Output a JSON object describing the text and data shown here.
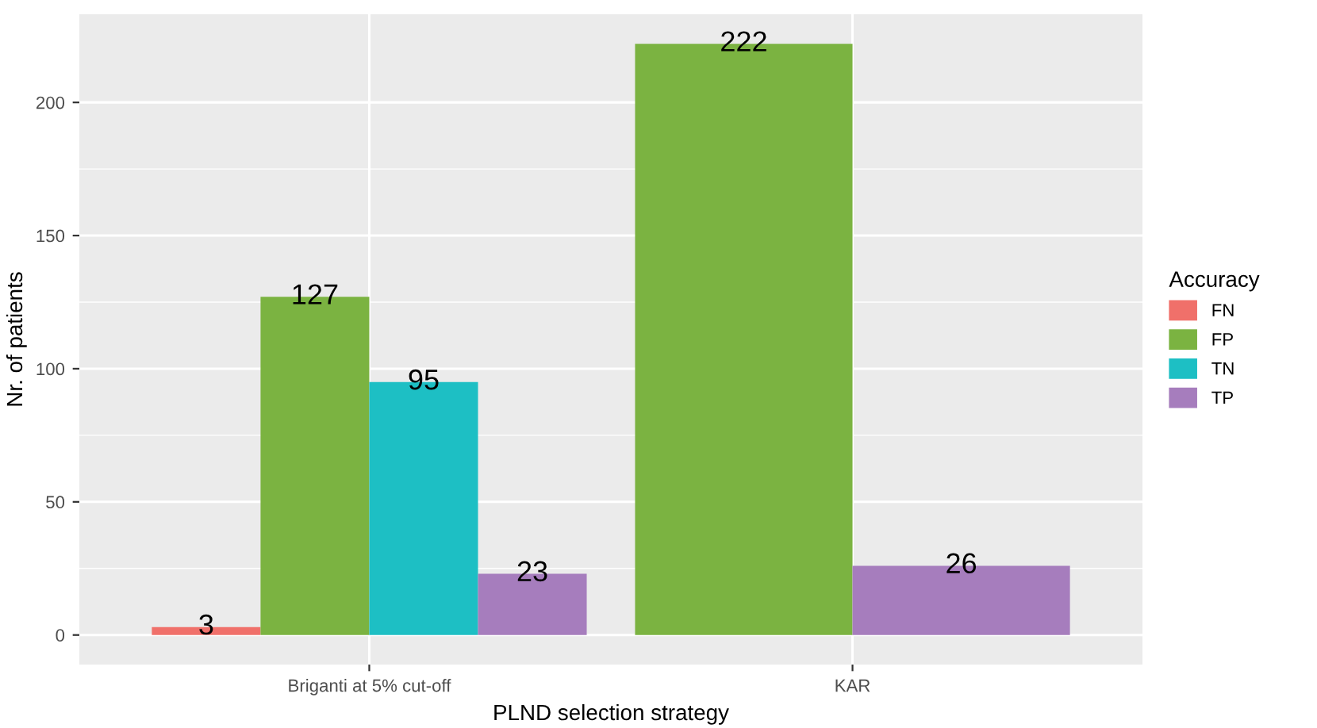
{
  "chart_data": {
    "type": "bar",
    "xlabel": "PLND selection strategy",
    "ylabel": "Nr. of patients",
    "legend_title": "Accuracy",
    "categories": [
      "Briganti at 5% cut-off",
      "KAR"
    ],
    "series": [
      {
        "name": "FN",
        "color": "#f0706a",
        "values": [
          3,
          null
        ]
      },
      {
        "name": "FP",
        "color": "#7bb341",
        "values": [
          127,
          222
        ]
      },
      {
        "name": "TN",
        "color": "#1dbfc4",
        "values": [
          95,
          null
        ]
      },
      {
        "name": "TP",
        "color": "#a67dbd",
        "values": [
          23,
          26
        ]
      }
    ],
    "ylim": [
      -11.1,
      233.1
    ],
    "yticks": [
      0,
      50,
      100,
      150,
      200
    ],
    "grid": true,
    "legend": "right",
    "data_labels": true
  }
}
